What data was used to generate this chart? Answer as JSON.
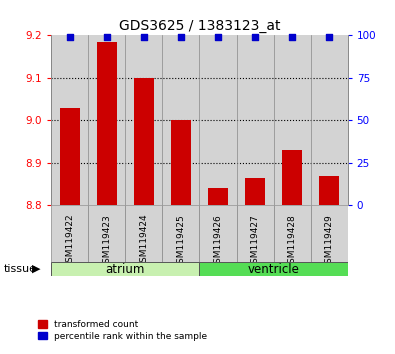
{
  "title": "GDS3625 / 1383123_at",
  "samples": [
    "GSM119422",
    "GSM119423",
    "GSM119424",
    "GSM119425",
    "GSM119426",
    "GSM119427",
    "GSM119428",
    "GSM119429"
  ],
  "bar_values": [
    9.03,
    9.185,
    9.1,
    9.0,
    8.84,
    8.865,
    8.93,
    8.87
  ],
  "percentile_values": [
    99,
    99,
    99,
    99,
    99,
    99,
    99,
    99
  ],
  "ylim_left": [
    8.8,
    9.2
  ],
  "ylim_right": [
    0,
    100
  ],
  "yticks_left": [
    8.8,
    8.9,
    9.0,
    9.1,
    9.2
  ],
  "yticks_right": [
    0,
    25,
    50,
    75,
    100
  ],
  "bar_color": "#cc0000",
  "dot_color": "#0000cc",
  "bar_width": 0.55,
  "atrium_indices": [
    0,
    1,
    2,
    3
  ],
  "ventricle_indices": [
    4,
    5,
    6,
    7
  ],
  "atrium_label": "atrium",
  "ventricle_label": "ventricle",
  "atrium_color": "#c8f0b0",
  "ventricle_color": "#55dd55",
  "tissue_label": "tissue",
  "legend_bar_label": "transformed count",
  "legend_dot_label": "percentile rank within the sample",
  "tick_box_color": "#d3d3d3",
  "col_sep_color": "#aaaaaa",
  "grid_linestyle": ":",
  "grid_linewidth": 0.8
}
